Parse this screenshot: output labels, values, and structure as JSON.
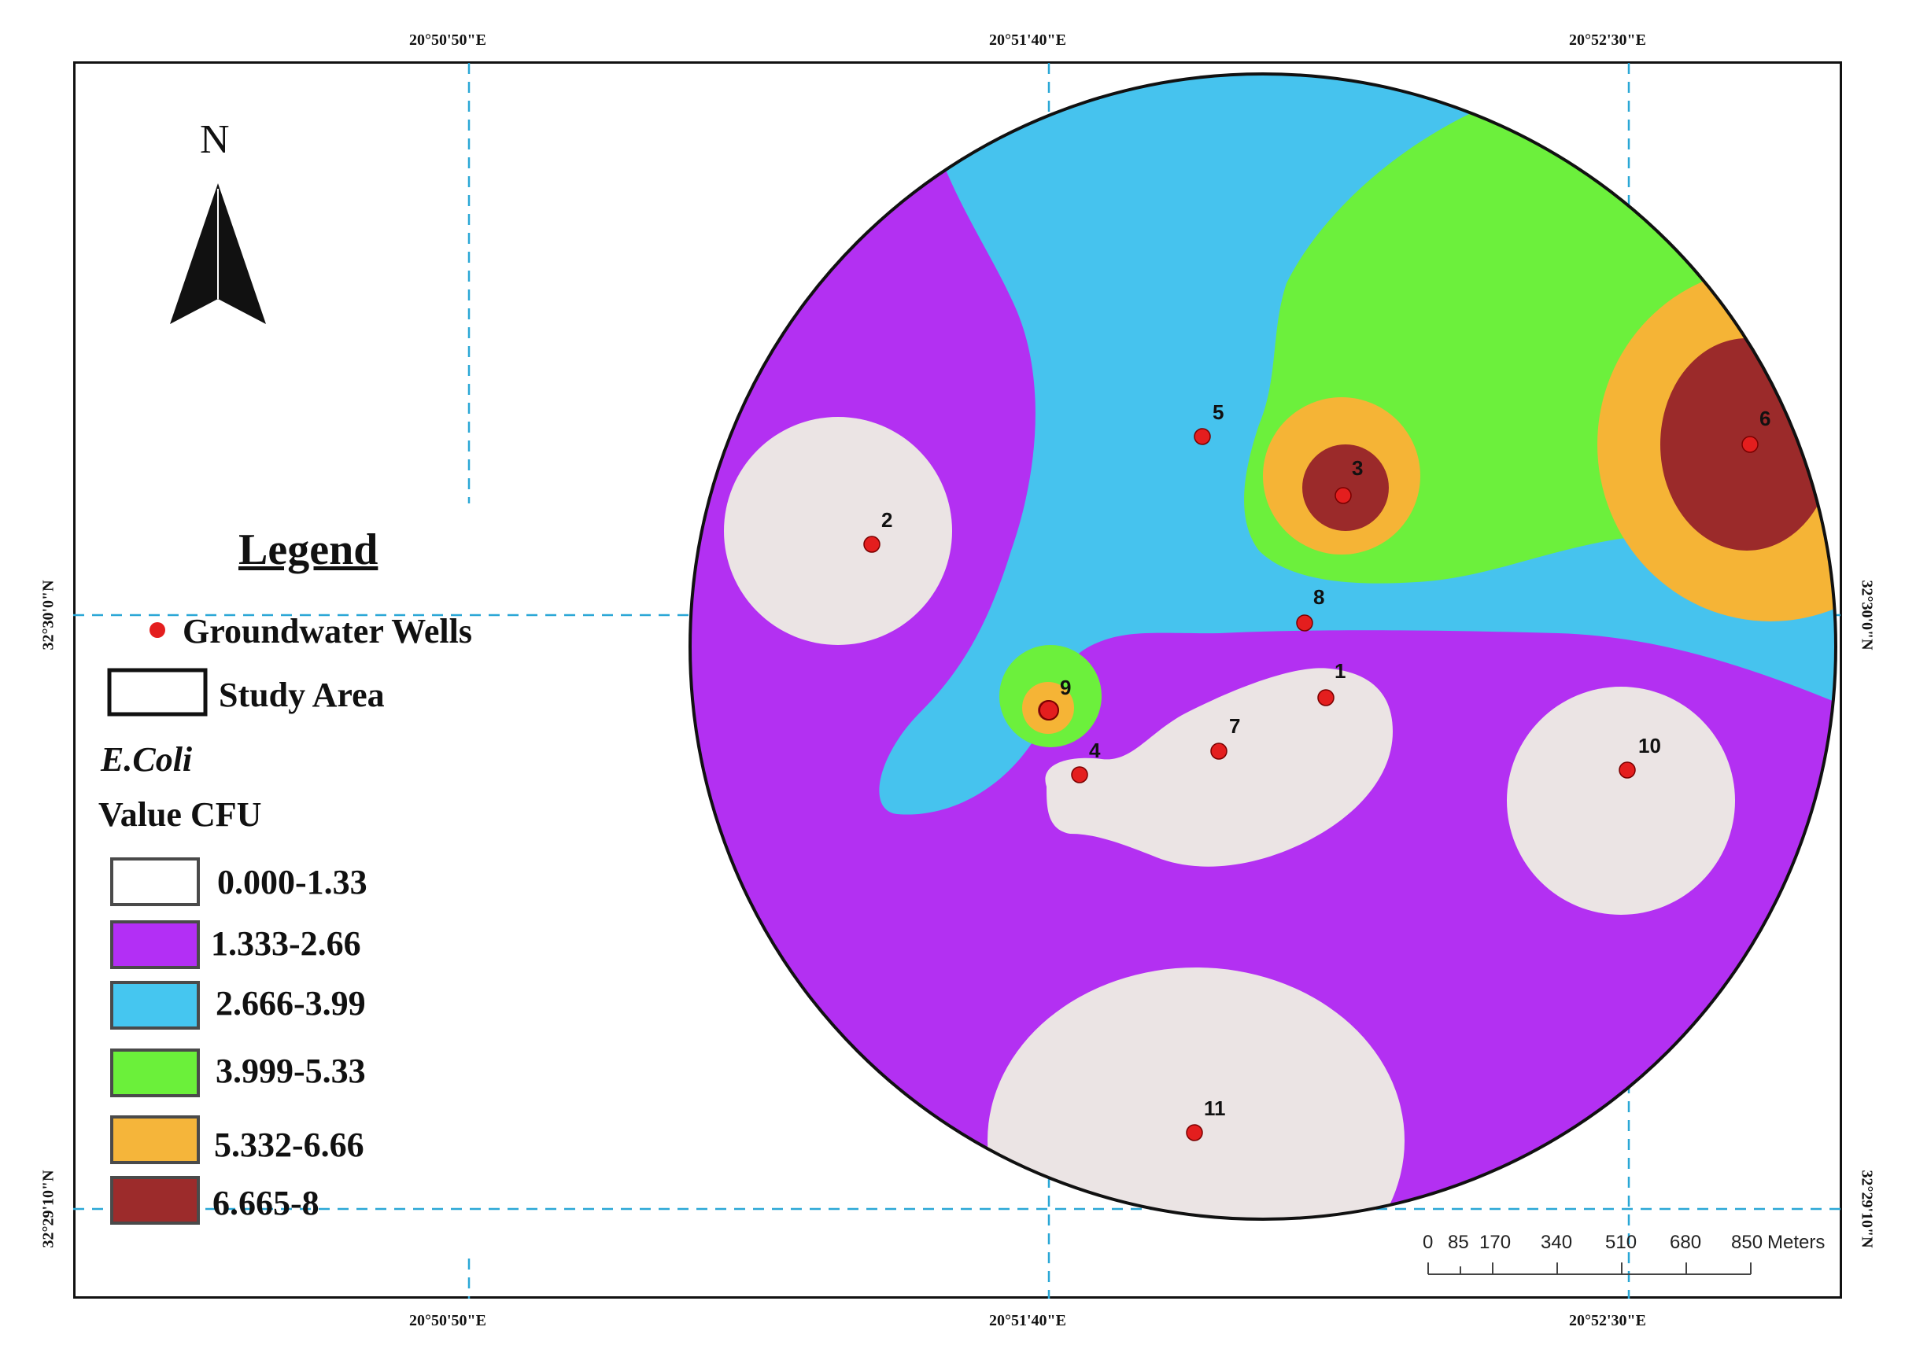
{
  "coords": {
    "top": [
      "20°50'50\"E",
      "20°51'40\"E",
      "20°52'30\"E"
    ],
    "bottom": [
      "20°50'50\"E",
      "20°51'40\"E",
      "20°52'30\"E"
    ],
    "left": [
      "32°30'0\"N",
      "32°29'10\"N"
    ],
    "right": [
      "32°30'0\"N",
      "32°29'10\"N"
    ]
  },
  "north_label": "N",
  "legend": {
    "title": "Legend",
    "wells_label": "Groundwater Wells",
    "study_area_label": "Study Area",
    "parameter": "E.Coli",
    "unit_label": "Value CFU",
    "classes": [
      {
        "label": "0.000-1.33",
        "color": "#e9e3e3"
      },
      {
        "label": "1.333-2.66",
        "color": "#b32ff5"
      },
      {
        "label": "2.666-3.99",
        "color": "#45c6f0"
      },
      {
        "label": "3.999-5.33",
        "color": "#6bf03a"
      },
      {
        "label": "5.332-6.66",
        "color": "#f5b53a"
      },
      {
        "label": "6.665-8",
        "color": "#9c2b2b"
      }
    ]
  },
  "wells": [
    {
      "id": "1"
    },
    {
      "id": "2"
    },
    {
      "id": "3"
    },
    {
      "id": "4"
    },
    {
      "id": "5"
    },
    {
      "id": "6"
    },
    {
      "id": "7"
    },
    {
      "id": "8"
    },
    {
      "id": "9"
    },
    {
      "id": "10"
    },
    {
      "id": "11"
    }
  ],
  "scale_bar": {
    "ticks": [
      "0",
      "85",
      "170",
      "340",
      "510",
      "680",
      "850"
    ],
    "unit": "Meters"
  }
}
